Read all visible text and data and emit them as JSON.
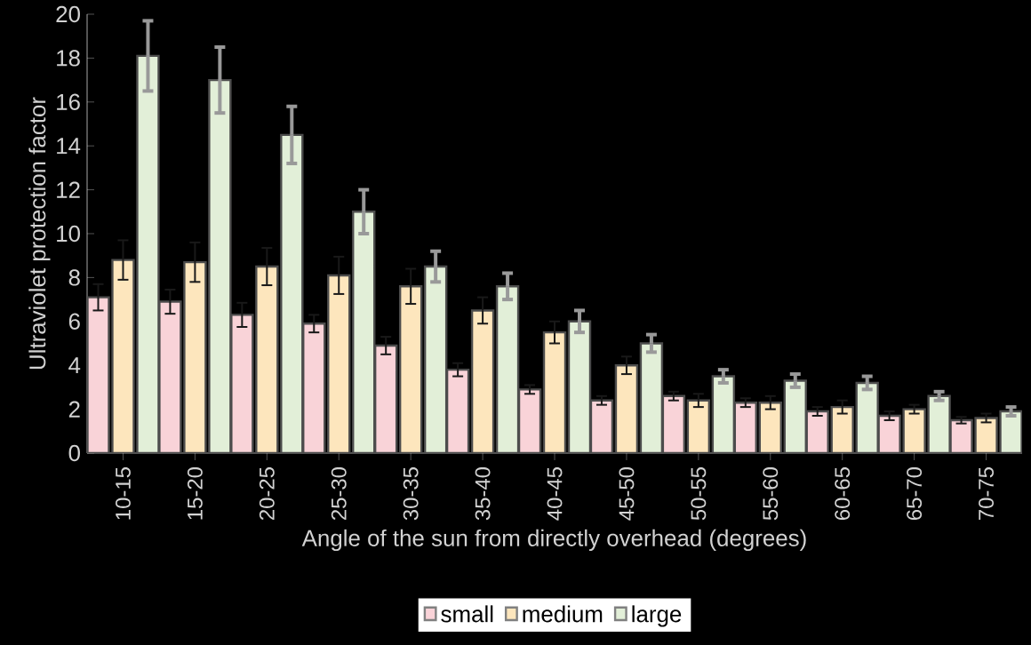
{
  "chart_data": {
    "type": "bar",
    "xlabel": "Angle of the sun from directly overhead (degrees)",
    "ylabel": "Ultraviolet protection factor",
    "categories": [
      "10-15",
      "15-20",
      "20-25",
      "25-30",
      "30-35",
      "35-40",
      "40-45",
      "45-50",
      "50-55",
      "55-60",
      "60-65",
      "65-70",
      "70-75"
    ],
    "series": [
      {
        "name": "small",
        "color": "#f9d3d8",
        "values": [
          7.1,
          6.9,
          6.3,
          5.9,
          4.9,
          3.8,
          2.9,
          2.4,
          2.6,
          2.3,
          1.9,
          1.7,
          1.5
        ],
        "errors": [
          0.6,
          0.55,
          0.55,
          0.4,
          0.4,
          0.3,
          0.2,
          0.2,
          0.2,
          0.2,
          0.2,
          0.2,
          0.15
        ]
      },
      {
        "name": "medium",
        "color": "#fde6bd",
        "values": [
          8.8,
          8.7,
          8.5,
          8.1,
          7.6,
          6.5,
          5.5,
          4.0,
          2.4,
          2.3,
          2.1,
          2.0,
          1.6
        ],
        "errors": [
          0.9,
          0.9,
          0.85,
          0.85,
          0.8,
          0.6,
          0.5,
          0.4,
          0.3,
          0.3,
          0.3,
          0.2,
          0.2
        ]
      },
      {
        "name": "large",
        "color": "#e2efd8",
        "values": [
          18.1,
          17.0,
          14.5,
          11.0,
          8.5,
          7.6,
          6.0,
          5.0,
          3.5,
          3.3,
          3.2,
          2.6,
          1.9
        ],
        "errors": [
          1.6,
          1.5,
          1.3,
          1.0,
          0.7,
          0.6,
          0.5,
          0.4,
          0.3,
          0.3,
          0.3,
          0.2,
          0.2
        ]
      }
    ],
    "ylim": [
      0,
      20
    ],
    "yticks": [
      0,
      2,
      4,
      6,
      8,
      10,
      12,
      14,
      16,
      18,
      20
    ],
    "legend": "bottom"
  }
}
